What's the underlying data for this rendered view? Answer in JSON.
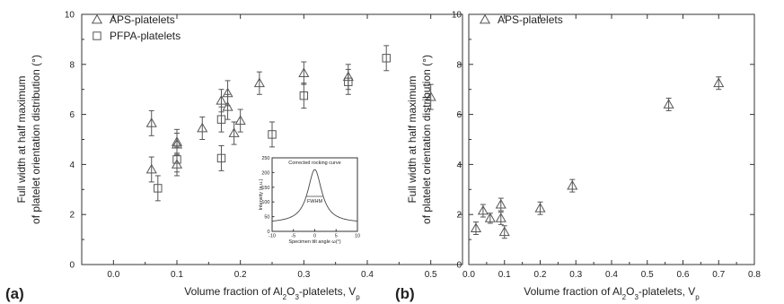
{
  "chart_data": [
    {
      "type": "scatter",
      "panel_label": "(a)",
      "xlabel": "Volume fraction of Al2O3-platelets, Vp",
      "xlabel_parts": [
        "Volume fraction of Al",
        "2",
        "O",
        "3",
        "-platelets, V",
        "p"
      ],
      "ylabel_lines": [
        "Full width at half maximum",
        "of platelet orientation distribution (°)"
      ],
      "xlim": [
        -0.05,
        0.55
      ],
      "ylim": [
        0,
        10
      ],
      "xticks": [
        "0.0",
        "0.1",
        "0.2",
        "0.3",
        "0.4",
        "0.5"
      ],
      "yticks": [
        "0",
        "2",
        "4",
        "6",
        "8",
        "10"
      ],
      "legend_position": "top-left",
      "series": [
        {
          "name": "APS-platelets",
          "marker": "triangle",
          "points": [
            {
              "x": 0.06,
              "y": 5.65,
              "err": 0.5
            },
            {
              "x": 0.06,
              "y": 3.8,
              "err": 0.5
            },
            {
              "x": 0.1,
              "y": 4.9,
              "err": 0.5
            },
            {
              "x": 0.1,
              "y": 4.8,
              "err": 0.45
            },
            {
              "x": 0.1,
              "y": 4.0,
              "err": 0.45
            },
            {
              "x": 0.14,
              "y": 5.45,
              "err": 0.45
            },
            {
              "x": 0.17,
              "y": 6.55,
              "err": 0.45
            },
            {
              "x": 0.18,
              "y": 6.85,
              "err": 0.5
            },
            {
              "x": 0.18,
              "y": 6.3,
              "err": 0.5
            },
            {
              "x": 0.19,
              "y": 5.25,
              "err": 0.45
            },
            {
              "x": 0.2,
              "y": 5.75,
              "err": 0.45
            },
            {
              "x": 0.23,
              "y": 7.25,
              "err": 0.45
            },
            {
              "x": 0.3,
              "y": 7.65,
              "err": 0.45
            },
            {
              "x": 0.37,
              "y": 7.5,
              "err": 0.5
            },
            {
              "x": 0.5,
              "y": 6.7,
              "err": 0.5
            }
          ]
        },
        {
          "name": "PFPA-platelets",
          "marker": "square",
          "points": [
            {
              "x": 0.07,
              "y": 3.05,
              "err": 0.5
            },
            {
              "x": 0.1,
              "y": 4.2,
              "err": 0.5
            },
            {
              "x": 0.17,
              "y": 4.25,
              "err": 0.5
            },
            {
              "x": 0.17,
              "y": 5.8,
              "err": 0.5
            },
            {
              "x": 0.25,
              "y": 5.2,
              "err": 0.5
            },
            {
              "x": 0.3,
              "y": 6.75,
              "err": 0.5
            },
            {
              "x": 0.37,
              "y": 7.3,
              "err": 0.5
            },
            {
              "x": 0.43,
              "y": 8.25,
              "err": 0.5
            }
          ]
        }
      ],
      "inset": {
        "type": "line",
        "title": "Corrected rocking curve",
        "xlabel": "Specimen tilt angle ω(°)",
        "ylabel": "Intensity (a.u.)",
        "annotation": "FWHM",
        "xlim": [
          -10,
          10
        ],
        "ylim": [
          0,
          250
        ],
        "xticks": [
          "-10",
          "-5",
          "0",
          "5",
          "10"
        ],
        "yticks": [
          "0",
          "50",
          "100",
          "150",
          "200",
          "250"
        ],
        "peak_center": 0,
        "peak_height": 210,
        "baseline": 28,
        "fwhm": 4.0
      }
    },
    {
      "type": "scatter",
      "panel_label": "(b)",
      "xlabel": "Volume fraction of Al2O3-platelets, Vp",
      "xlabel_parts": [
        "Volume fraction of Al",
        "2",
        "O",
        "3",
        "-platelets, V",
        "p"
      ],
      "ylabel_lines": [
        "Full width at half maximum",
        "of platelet orientation distribution (°)"
      ],
      "xlim": [
        0.0,
        0.8
      ],
      "ylim": [
        0,
        10
      ],
      "xticks": [
        "0.0",
        "0.1",
        "0.2",
        "0.3",
        "0.4",
        "0.5",
        "0.6",
        "0.7",
        "0.8"
      ],
      "yticks": [
        "0",
        "2",
        "4",
        "6",
        "8",
        "10"
      ],
      "legend_position": "top-left",
      "series": [
        {
          "name": "APS-platelets",
          "marker": "triangle",
          "points": [
            {
              "x": 0.02,
              "y": 1.45,
              "err": 0.25
            },
            {
              "x": 0.04,
              "y": 2.15,
              "err": 0.25
            },
            {
              "x": 0.06,
              "y": 1.85,
              "err": 0.2
            },
            {
              "x": 0.09,
              "y": 2.4,
              "err": 0.25
            },
            {
              "x": 0.09,
              "y": 1.85,
              "err": 0.25
            },
            {
              "x": 0.1,
              "y": 1.3,
              "err": 0.25
            },
            {
              "x": 0.2,
              "y": 2.25,
              "err": 0.25
            },
            {
              "x": 0.29,
              "y": 3.15,
              "err": 0.25
            },
            {
              "x": 0.56,
              "y": 6.4,
              "err": 0.25
            },
            {
              "x": 0.7,
              "y": 7.25,
              "err": 0.25
            }
          ]
        }
      ]
    }
  ]
}
